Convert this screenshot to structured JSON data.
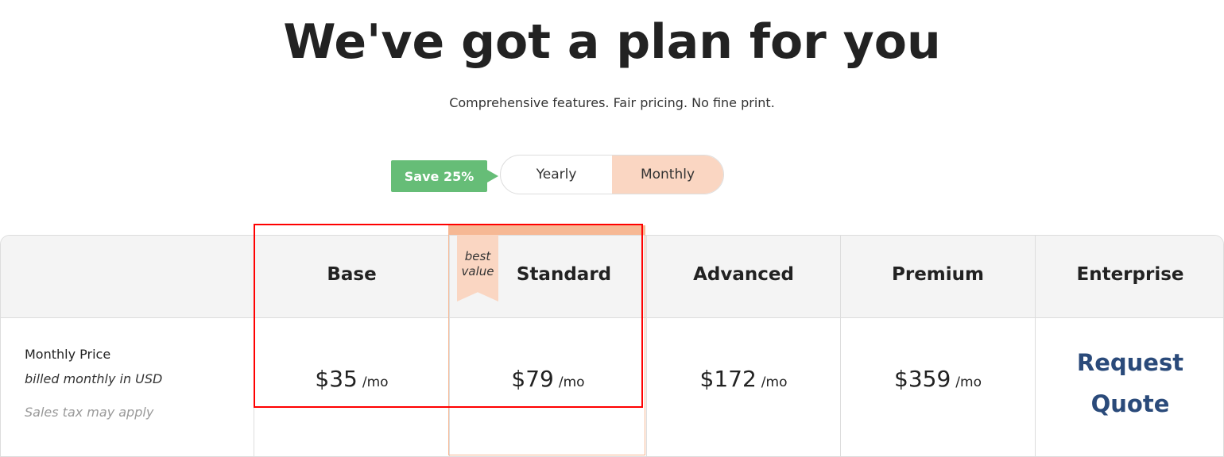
{
  "header": {
    "title": "We've got a plan for you",
    "subtitle": "Comprehensive features. Fair pricing. No fine print."
  },
  "billing": {
    "save_badge": "Save 25%",
    "options": [
      "Yearly",
      "Monthly"
    ],
    "selected": "Monthly"
  },
  "row_label": {
    "title": "Monthly Price",
    "note": "billed monthly in USD",
    "tax": "Sales tax may apply"
  },
  "ribbon": {
    "line1": "best",
    "line2": "value"
  },
  "plans": [
    {
      "name": "Base",
      "price": "$35",
      "unit": "/mo"
    },
    {
      "name": "Standard",
      "price": "$79",
      "unit": "/mo"
    },
    {
      "name": "Advanced",
      "price": "$172",
      "unit": "/mo"
    },
    {
      "name": "Premium",
      "price": "$359",
      "unit": "/mo"
    },
    {
      "name": "Enterprise",
      "cta1": "Request",
      "cta2": "Quote"
    }
  ],
  "colors": {
    "accent": "#f6b894",
    "badge": "#66bd77",
    "selected": "#fad6c2",
    "link": "#2a4a7a",
    "highlight": "#ff0000"
  }
}
